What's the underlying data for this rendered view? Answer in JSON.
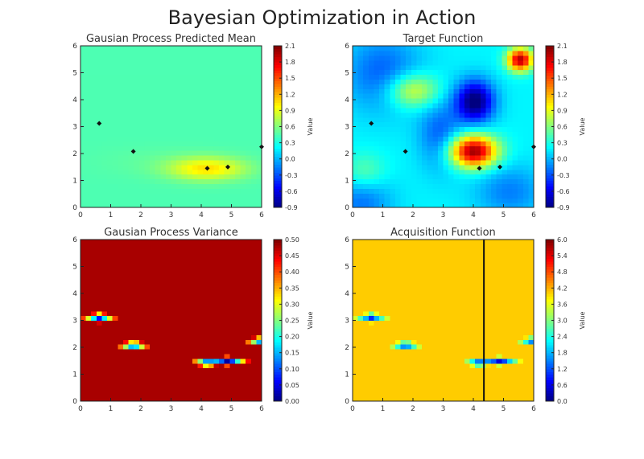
{
  "figure": {
    "title": "Bayesian Optimization in Action"
  },
  "chart_data": [
    {
      "type": "heatmap",
      "title": "Gausian Process Predicted Mean",
      "field": "mean",
      "xlim": [
        0,
        6
      ],
      "ylim": [
        0,
        6
      ],
      "x_ticks": [
        "0",
        "1",
        "2",
        "3",
        "4",
        "5",
        "6"
      ],
      "y_ticks": [
        "0",
        "1",
        "2",
        "3",
        "4",
        "5",
        "6"
      ],
      "colorbar": {
        "label": "Value",
        "range": [
          -0.9,
          2.1
        ],
        "ticks": [
          "2.1",
          "1.8",
          "1.5",
          "1.2",
          "0.9",
          "0.6",
          "0.3",
          "0.0",
          "-0.3",
          "-0.6",
          "-0.9"
        ]
      },
      "points": [
        {
          "x": 0.62,
          "y": 3.12
        },
        {
          "x": 1.75,
          "y": 2.08
        },
        {
          "x": 4.2,
          "y": 1.45
        },
        {
          "x": 4.88,
          "y": 1.5
        },
        {
          "x": 6.0,
          "y": 2.25
        }
      ]
    },
    {
      "type": "heatmap",
      "title": "Target Function",
      "field": "target",
      "xlim": [
        0,
        6
      ],
      "ylim": [
        0,
        6
      ],
      "x_ticks": [
        "0",
        "1",
        "2",
        "3",
        "4",
        "5",
        "6"
      ],
      "y_ticks": [
        "0",
        "1",
        "2",
        "3",
        "4",
        "5",
        "6"
      ],
      "colorbar": {
        "label": "Value",
        "range": [
          -0.9,
          2.1
        ],
        "ticks": [
          "2.1",
          "1.8",
          "1.5",
          "1.2",
          "0.9",
          "0.6",
          "0.3",
          "0.0",
          "-0.3",
          "-0.6",
          "-0.9"
        ]
      },
      "points": [
        {
          "x": 0.62,
          "y": 3.12
        },
        {
          "x": 1.75,
          "y": 2.08
        },
        {
          "x": 4.2,
          "y": 1.45
        },
        {
          "x": 4.88,
          "y": 1.5
        },
        {
          "x": 6.0,
          "y": 2.25
        }
      ]
    },
    {
      "type": "heatmap",
      "title": "Gausian Process Variance",
      "field": "variance",
      "xlim": [
        0,
        6
      ],
      "ylim": [
        0,
        6
      ],
      "x_ticks": [
        "0",
        "1",
        "2",
        "3",
        "4",
        "5",
        "6"
      ],
      "y_ticks": [
        "0",
        "1",
        "2",
        "3",
        "4",
        "5",
        "6"
      ],
      "colorbar": {
        "label": "Value",
        "range": [
          0.0,
          0.5
        ],
        "ticks": [
          "0.50",
          "0.45",
          "0.40",
          "0.35",
          "0.30",
          "0.25",
          "0.20",
          "0.15",
          "0.10",
          "0.05",
          "0.00"
        ]
      },
      "points": []
    },
    {
      "type": "heatmap",
      "title": "Acquisition Function",
      "field": "acquisition",
      "xlim": [
        0,
        6
      ],
      "ylim": [
        0,
        6
      ],
      "x_ticks": [
        "0",
        "1",
        "2",
        "3",
        "4",
        "5",
        "6"
      ],
      "y_ticks": [
        "0",
        "1",
        "2",
        "3",
        "4",
        "5",
        "6"
      ],
      "colorbar": {
        "label": "Value",
        "range": [
          0.0,
          6.0
        ],
        "ticks": [
          "6.0",
          "5.4",
          "4.8",
          "4.2",
          "3.6",
          "3.0",
          "2.4",
          "1.8",
          "1.2",
          "0.6",
          "0.0"
        ]
      },
      "points": [],
      "vline_x": 4.35
    }
  ]
}
